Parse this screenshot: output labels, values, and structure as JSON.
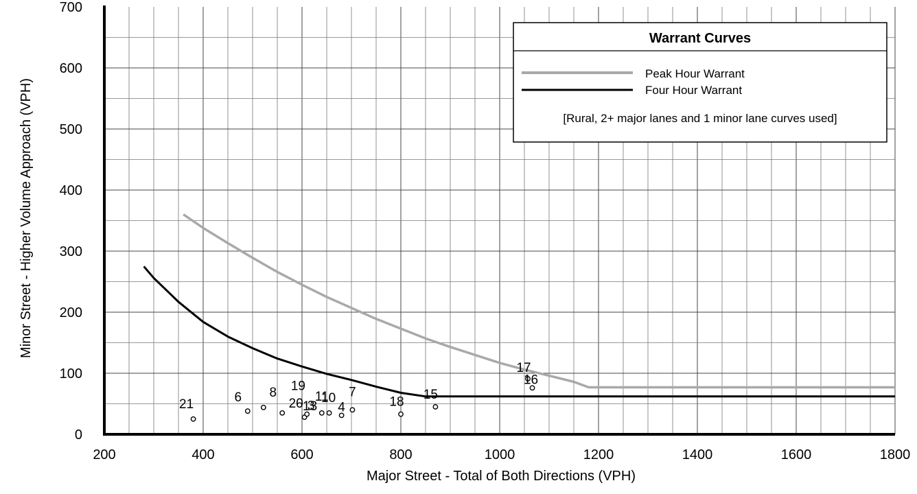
{
  "chart_data": {
    "type": "line",
    "xlabel": "Major Street - Total of Both Directions (VPH)",
    "ylabel": "Minor Street - Higher Volume Approach (VPH)",
    "xlim": [
      200,
      1800
    ],
    "ylim": [
      0,
      700
    ],
    "x_ticks": [
      200,
      400,
      600,
      800,
      1000,
      1200,
      1400,
      1600,
      1800
    ],
    "y_ticks": [
      0,
      100,
      200,
      300,
      400,
      500,
      600,
      700
    ],
    "grid": true,
    "series": [
      {
        "name": "Peak Hour Warrant",
        "color": "#a9a9a9",
        "x": [
          360,
          400,
          450,
          500,
          550,
          600,
          650,
          700,
          750,
          800,
          850,
          900,
          950,
          1000,
          1050,
          1100,
          1150,
          1180,
          1800
        ],
        "y": [
          360,
          338,
          313,
          289,
          266,
          245,
          225,
          207,
          189,
          173,
          157,
          143,
          130,
          117,
          106,
          96,
          86,
          77,
          77
        ]
      },
      {
        "name": "Four Hour Warrant",
        "color": "#000000",
        "x": [
          280,
          300,
          350,
          400,
          450,
          500,
          550,
          600,
          650,
          700,
          750,
          800,
          850,
          870,
          1800
        ],
        "y": [
          275,
          256,
          217,
          184,
          160,
          141,
          124,
          111,
          99,
          89,
          78,
          68,
          62,
          62,
          62
        ]
      }
    ],
    "points": [
      {
        "label": "21",
        "x": 380,
        "y": 25
      },
      {
        "label": "6",
        "x": 490,
        "y": 38
      },
      {
        "label": "8",
        "x": 522,
        "y": 44
      },
      {
        "label": "20",
        "x": 560,
        "y": 35
      },
      {
        "label": "19",
        "x": 595,
        "y": 48
      },
      {
        "label": "13",
        "x": 605,
        "y": 28
      },
      {
        "label": "3",
        "x": 610,
        "y": 33
      },
      {
        "label": "11",
        "x": 640,
        "y": 35
      },
      {
        "label": "10",
        "x": 655,
        "y": 35
      },
      {
        "label": "4",
        "x": 680,
        "y": 31
      },
      {
        "label": "7",
        "x": 702,
        "y": 40
      },
      {
        "label": "18",
        "x": 800,
        "y": 33
      },
      {
        "label": "15",
        "x": 870,
        "y": 45
      },
      {
        "label": "17",
        "x": 1057,
        "y": 91
      },
      {
        "label": "16",
        "x": 1066,
        "y": 76
      }
    ]
  },
  "legend": {
    "title": "Warrant Curves",
    "items": [
      {
        "label": "Peak Hour Warrant",
        "color": "#a9a9a9"
      },
      {
        "label": "Four Hour Warrant",
        "color": "#000000"
      }
    ],
    "note": "[Rural,  2+ major lanes and 1 minor lane curves used]",
    "placement": "top-right"
  }
}
